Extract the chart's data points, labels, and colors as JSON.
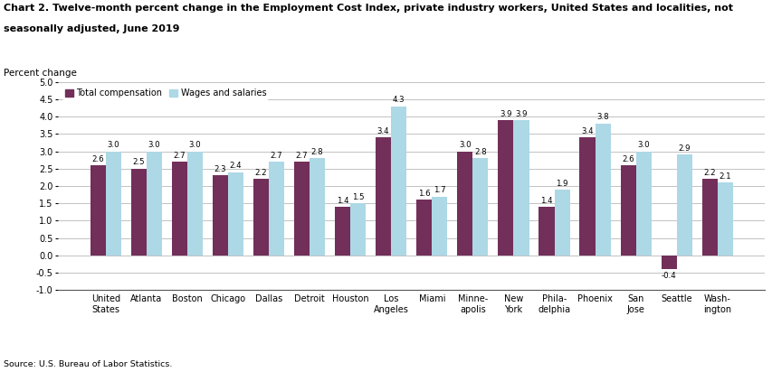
{
  "title_line1": "Chart 2. Twelve-month percent change in the Employment Cost Index, private industry workers, United States and localities, not",
  "title_line2": "seasonally adjusted, June 2019",
  "ylabel": "Percent change",
  "source": "Source: U.S. Bureau of Labor Statistics.",
  "categories": [
    "United\nStates",
    "Atlanta",
    "Boston",
    "Chicago",
    "Dallas",
    "Detroit",
    "Houston",
    "Los\nAngeles",
    "Miami",
    "Minne-\napolis",
    "New\nYork",
    "Phila-\ndelphia",
    "Phoenix",
    "San\nJose",
    "Seattle",
    "Wash-\nington"
  ],
  "total_compensation": [
    2.6,
    2.5,
    2.7,
    2.3,
    2.2,
    2.7,
    1.4,
    3.4,
    1.6,
    3.0,
    3.9,
    1.4,
    3.4,
    2.6,
    -0.4,
    2.2
  ],
  "wages_and_salaries": [
    3.0,
    3.0,
    3.0,
    2.4,
    2.7,
    2.8,
    1.5,
    4.3,
    1.7,
    2.8,
    3.9,
    1.9,
    3.8,
    3.0,
    2.9,
    2.1
  ],
  "color_total": "#722F5A",
  "color_wages": "#ADD8E6",
  "ylim": [
    -1.0,
    5.0
  ],
  "yticks": [
    -1.0,
    -0.5,
    0.0,
    0.5,
    1.0,
    1.5,
    2.0,
    2.5,
    3.0,
    3.5,
    4.0,
    4.5,
    5.0
  ],
  "legend_labels": [
    "Total compensation",
    "Wages and salaries"
  ],
  "bar_width": 0.38,
  "label_fontsize": 6.2,
  "tick_fontsize": 7.0,
  "title_fontsize": 8.0,
  "ylabel_fontsize": 7.5
}
